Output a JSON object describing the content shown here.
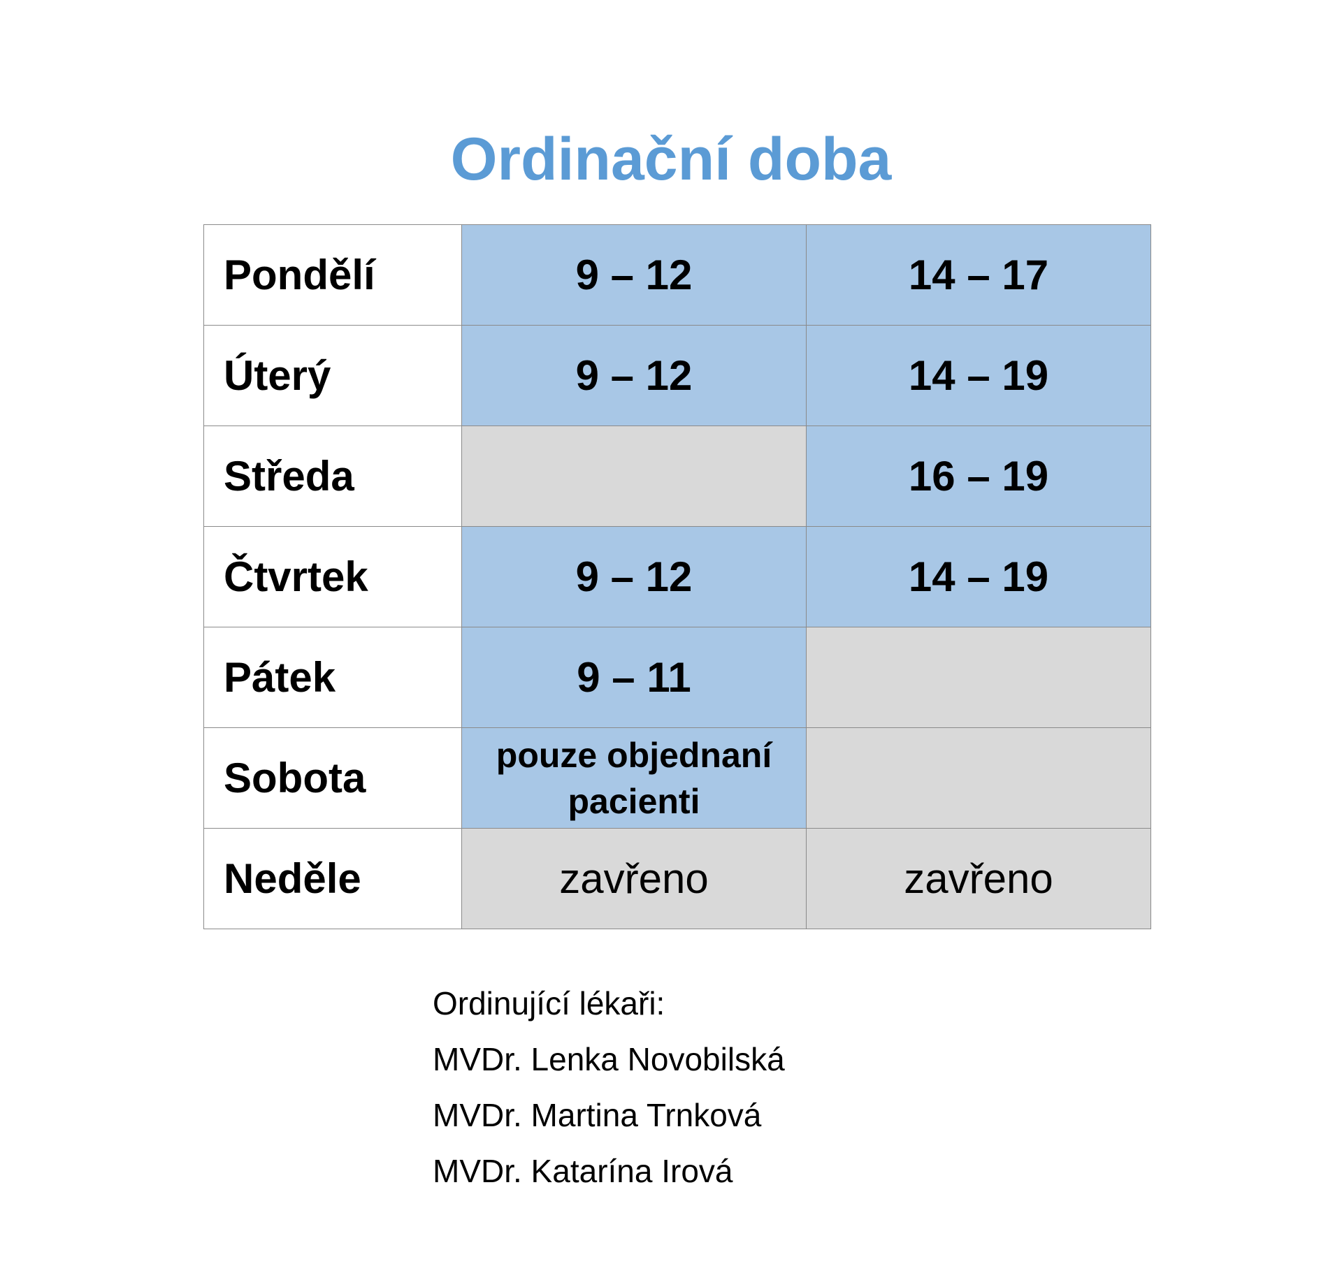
{
  "title": "Ordinační doba",
  "schedule": [
    {
      "day": "Pondělí",
      "morning": "9 – 12",
      "afternoon": "14 – 17"
    },
    {
      "day": "Úterý",
      "morning": "9 – 12",
      "afternoon": "14 – 19"
    },
    {
      "day": "Středa",
      "morning": "",
      "afternoon": "16 – 19"
    },
    {
      "day": "Čtvrtek",
      "morning": "9 – 12",
      "afternoon": "14 – 19"
    },
    {
      "day": "Pátek",
      "morning": "9 – 11",
      "afternoon": ""
    },
    {
      "day": "Sobota",
      "morning": "pouze objednaní pacienti",
      "afternoon": ""
    },
    {
      "day": "Neděle",
      "morning": "zavřeno",
      "afternoon": "zavřeno"
    }
  ],
  "doctors": {
    "heading": "Ordinující lékaři:",
    "names": [
      "MVDr. Lenka Novobilská",
      "MVDr. Martina Trnková",
      "MVDr. Katarína Irová"
    ]
  },
  "colors": {
    "title": "#5b9bd5",
    "open_cell": "#a8c7e6",
    "closed_cell": "#d9d9d9"
  }
}
